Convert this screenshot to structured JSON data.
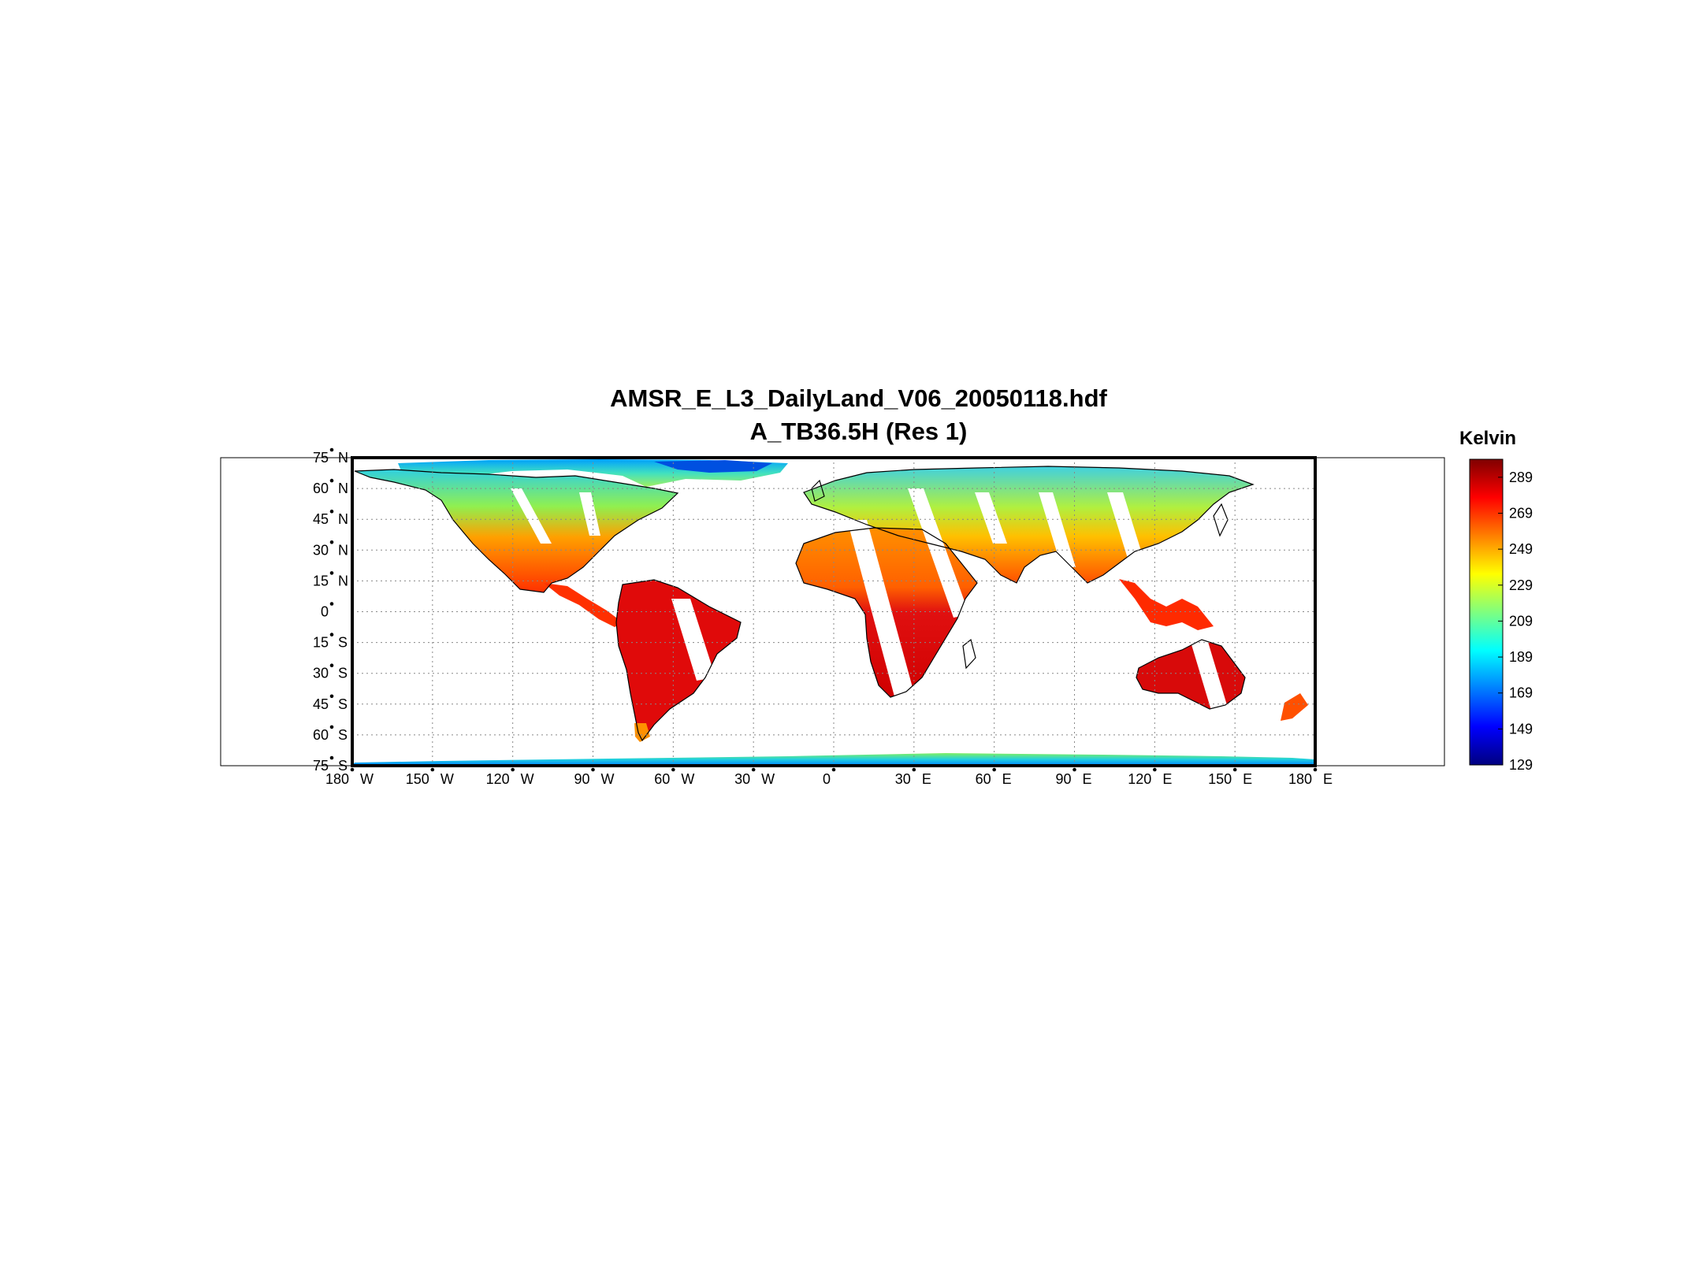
{
  "title": "AMSR_E_L3_DailyLand_V06_20050118.hdf",
  "subtitle": "A_TB36.5H (Res 1)",
  "colorbar": {
    "label": "Kelvin",
    "ticks": [
      "289",
      "269",
      "249",
      "229",
      "209",
      "189",
      "169",
      "149",
      "129"
    ],
    "range": [
      129,
      299
    ],
    "colors": [
      "#00007f",
      "#0000ff",
      "#007fff",
      "#00ffff",
      "#7fff7f",
      "#ffff00",
      "#ff7f00",
      "#ff0000",
      "#7f0000"
    ]
  },
  "map": {
    "projection": "Equirectangular",
    "lon_range": [
      -180,
      180
    ],
    "lat_range": [
      -75,
      75
    ],
    "grid": true,
    "lon_ticks": [
      {
        "deg": "180",
        "hem": "W"
      },
      {
        "deg": "150",
        "hem": "W"
      },
      {
        "deg": "120",
        "hem": "W"
      },
      {
        "deg": "90",
        "hem": "W"
      },
      {
        "deg": "60",
        "hem": "W"
      },
      {
        "deg": "30",
        "hem": "W"
      },
      {
        "deg": "0",
        "hem": ""
      },
      {
        "deg": "30",
        "hem": "E"
      },
      {
        "deg": "60",
        "hem": "E"
      },
      {
        "deg": "90",
        "hem": "E"
      },
      {
        "deg": "120",
        "hem": "E"
      },
      {
        "deg": "150",
        "hem": "E"
      },
      {
        "deg": "180",
        "hem": "E"
      }
    ],
    "lat_ticks": [
      {
        "deg": "75",
        "hem": "N"
      },
      {
        "deg": "60",
        "hem": "N"
      },
      {
        "deg": "45",
        "hem": "N"
      },
      {
        "deg": "30",
        "hem": "N"
      },
      {
        "deg": "15",
        "hem": "N"
      },
      {
        "deg": "0",
        "hem": ""
      },
      {
        "deg": "15",
        "hem": "S"
      },
      {
        "deg": "30",
        "hem": "S"
      },
      {
        "deg": "45",
        "hem": "S"
      },
      {
        "deg": "60",
        "hem": "S"
      },
      {
        "deg": "75",
        "hem": "S"
      }
    ]
  }
}
